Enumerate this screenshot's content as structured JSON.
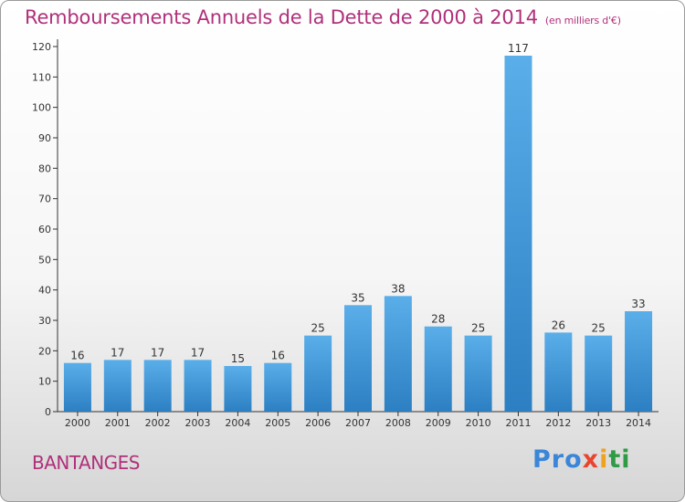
{
  "title": "Remboursements Annuels de la Dette de 2000 à 2014",
  "subtitle": "(en milliers d'€)",
  "commune": "BANTANGES",
  "logo_text": "Proxiti",
  "colors": {
    "accent": "#b0307a",
    "bar_top": "#5aaee9",
    "bar_bottom": "#2c7fc2"
  },
  "chart_data": {
    "type": "bar",
    "title": "Remboursements Annuels de la Dette de 2000 à 2014",
    "subtitle": "(en milliers d'€)",
    "categories": [
      "2000",
      "2001",
      "2002",
      "2003",
      "2004",
      "2005",
      "2006",
      "2007",
      "2008",
      "2009",
      "2010",
      "2011",
      "2012",
      "2013",
      "2014"
    ],
    "values": [
      16,
      17,
      17,
      17,
      15,
      16,
      25,
      35,
      38,
      28,
      25,
      117,
      26,
      25,
      33
    ],
    "ylim": [
      0,
      120
    ],
    "yticks": [
      0,
      10,
      20,
      30,
      40,
      50,
      60,
      70,
      80,
      90,
      100,
      110,
      120
    ],
    "grid": false,
    "data_labels": true
  }
}
